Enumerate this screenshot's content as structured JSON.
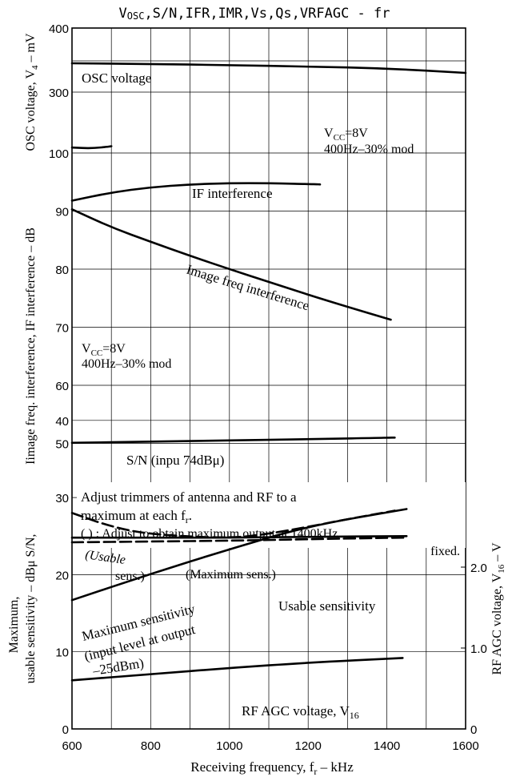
{
  "chart_data": {
    "type": "line",
    "title": "VOSC,S/N,IFR,IMR,Vs,Qs,VRFAGC - fr",
    "title_parts": {
      "a": "V",
      "a_sub": "OSC",
      "b": ",S/N,IFR,IMR,Vs,Qs,VRFAGC - fr"
    },
    "xlabel": "Receiving frequency, fr – kHz",
    "xlabel_parts": {
      "a": "Receiving frequency, f",
      "sub": "r",
      "b": " – kHz"
    },
    "xlim": [
      600,
      1600
    ],
    "x_ticks": [
      "600",
      "800",
      "1000",
      "1200",
      "1400",
      "1600"
    ],
    "ylabel_left": {
      "osc": {
        "a": "OSC voltage, V",
        "sub": "4",
        "b": " – mV"
      },
      "db": "Iimage freq. interference, IF interference – dB",
      "dbu": "Maximum, usable sensitivity – dBμ  S/N,",
      "dbu_line1": "Maximum,",
      "dbu_line2": "usable sensitivity  –  dBμ  S/N,"
    },
    "ylabel_right": {
      "a": "RF AGC voltage, V",
      "sub": "16",
      "b": " – V"
    },
    "y_ticks_left": [
      "400",
      "300",
      "100",
      "90",
      "80",
      "70",
      "60",
      "50",
      "40",
      "30",
      "20",
      "10",
      "0"
    ],
    "y_ticks_right": [
      "2.0",
      "1.0",
      "0"
    ],
    "grid": true,
    "annotations": {
      "vcc_top": {
        "a": "V",
        "sub": "CC",
        "b": "=8V"
      },
      "mod_top": "400Hz–30% mod",
      "vcc_mid": {
        "a": "V",
        "sub": "CC",
        "b": "=8V"
      },
      "mod_mid": "400Hz–30% mod",
      "adjust_1": "Adjust trimmers of antenna and RF to a",
      "adjust_2a": "maximum at each f",
      "adjust_2sub": "r",
      "adjust_2b": ".",
      "adjust_3": "( ) : Adjust to obtain maximum output at 1400kHz",
      "adjust_4": "fixed."
    },
    "series": [
      {
        "name": "OSC voltage",
        "axis": "osc_mV",
        "x": [
          600,
          800,
          1000,
          1200,
          1400,
          1600
        ],
        "y": [
          345,
          344,
          342,
          340,
          337,
          330
        ]
      },
      {
        "name": "IF interference",
        "axis": "dB",
        "x": [
          600,
          700,
          800,
          900,
          1000,
          1100,
          1230
        ],
        "y": [
          91.8,
          93.2,
          94.1,
          94.6,
          94.8,
          94.8,
          94.6
        ]
      },
      {
        "name": "Image freq interference",
        "axis": "dB",
        "x": [
          600,
          700,
          800,
          900,
          1000,
          1100,
          1200,
          1300,
          1410
        ],
        "y": [
          90.3,
          87.2,
          84.7,
          82.3,
          80.0,
          77.8,
          75.6,
          73.5,
          71.3
        ]
      },
      {
        "name": "S/N (inpu 74dBμ)",
        "axis": "dB",
        "x": [
          600,
          800,
          1000,
          1200,
          1420
        ],
        "y": [
          50.1,
          50.3,
          50.5,
          50.7,
          51.0
        ]
      },
      {
        "name": "Usable sensitivity",
        "axis": "dBu",
        "x": [
          600,
          800,
          1000,
          1200,
          1450
        ],
        "y": [
          24.8,
          24.8,
          24.8,
          24.9,
          25.0
        ]
      },
      {
        "name": "(Usable sens.)",
        "axis": "dBu",
        "dashed": true,
        "x": [
          600,
          700,
          800,
          1000,
          1100,
          1200,
          1300,
          1420
        ],
        "y": [
          28.0,
          26.2,
          25.2,
          24.7,
          25.3,
          26.2,
          27.2,
          28.3
        ]
      },
      {
        "name": "(Maximum sens.)",
        "axis": "dBu",
        "dashed": true,
        "x": [
          600,
          800,
          1000,
          1200,
          1450
        ],
        "y": [
          24.2,
          24.3,
          24.4,
          24.6,
          24.8
        ]
      },
      {
        "name": "Maximum sensitivity (input level at output –25dBm)",
        "axis": "dBu",
        "x": [
          600,
          800,
          1000,
          1200,
          1450
        ],
        "y": [
          16.7,
          20.1,
          23.3,
          26.3,
          28.5
        ]
      },
      {
        "name": "RF AGC voltage, V16",
        "axis": "dBu",
        "x": [
          600,
          800,
          1000,
          1200,
          1440
        ],
        "y": [
          6.3,
          7.1,
          7.9,
          8.6,
          9.2
        ]
      },
      {
        "name": "OSC voltage (low)",
        "axis": "osc_mV",
        "x": [
          600,
          650,
          700
        ],
        "y": [
          118,
          115,
          122
        ]
      }
    ],
    "labels": {
      "osc": "OSC voltage",
      "if": "IF interference",
      "image": "Image freq interference",
      "sn": "S/N (inpu 74dBμ)",
      "usable_sens_paren_1": "(Usable",
      "usable_sens_paren_2": "sens.)",
      "max_sens_paren": "(Maximum sens.)",
      "usable_sens": "Usable sensitivity",
      "max_sens_1": "Maximum sensitivity",
      "max_sens_2": "(input level at output",
      "max_sens_3": "–25dBm)",
      "rf_agc": {
        "a": "RF AGC voltage, V",
        "sub": "16"
      }
    }
  }
}
